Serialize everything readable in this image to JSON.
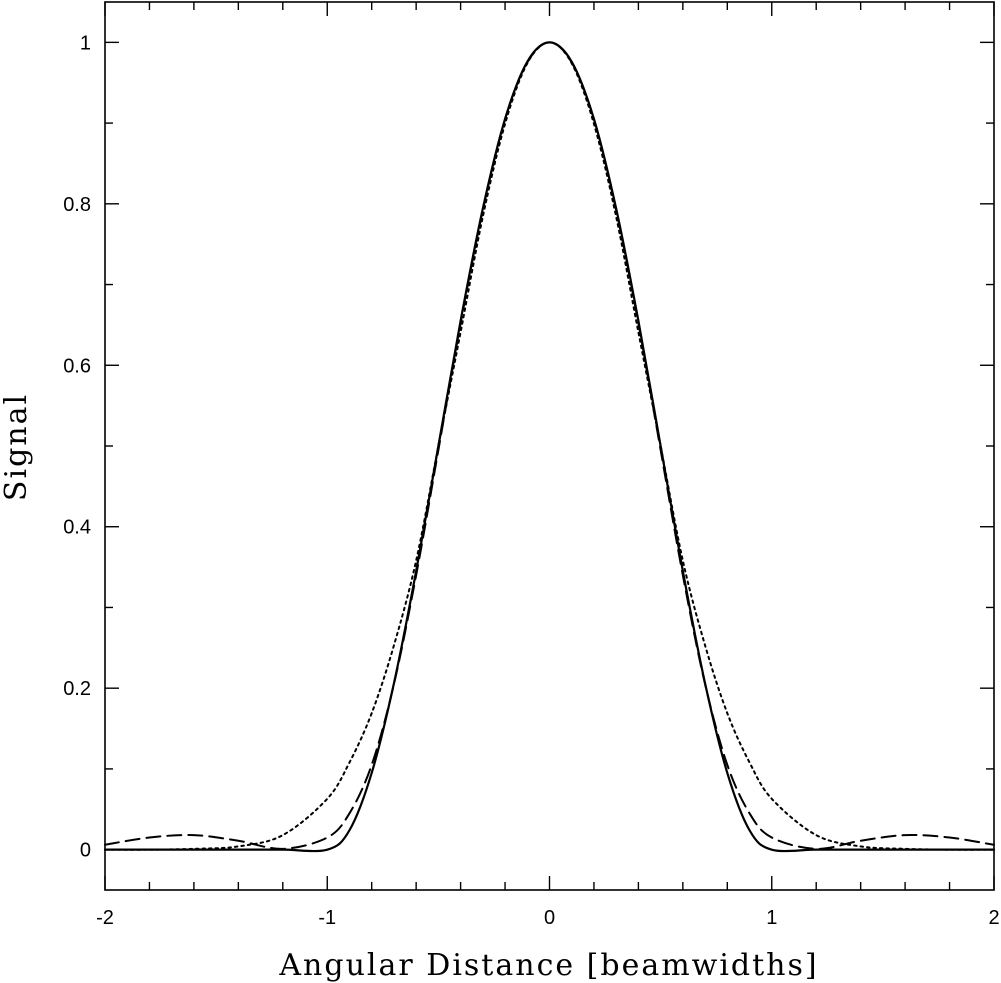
{
  "chart_data": {
    "type": "line",
    "title": "",
    "xlabel": "Angular Distance [beamwidths]",
    "ylabel": "Signal",
    "xlim": [
      -2,
      2
    ],
    "ylim": [
      -0.05,
      1.05
    ],
    "xticks": [
      -2,
      -1,
      0,
      1,
      2
    ],
    "xtick_labels": [
      "-2",
      "-1",
      "0",
      "1",
      "2"
    ],
    "yticks": [
      0,
      0.2,
      0.4,
      0.6,
      0.8,
      1
    ],
    "ytick_labels": [
      "0",
      "0.2",
      "0.4",
      "0.6",
      "0.8",
      "1"
    ],
    "grid": false,
    "legend": "none",
    "x": [
      -2.0,
      -1.8,
      -1.6,
      -1.4,
      -1.2,
      -1.0,
      -0.9,
      -0.8,
      -0.7,
      -0.6,
      -0.5,
      -0.4,
      -0.3,
      -0.2,
      -0.1,
      0.0,
      0.1,
      0.2,
      0.3,
      0.4,
      0.5,
      0.6,
      0.7,
      0.8,
      0.9,
      1.0,
      1.2,
      1.4,
      1.6,
      1.8,
      2.0
    ],
    "series": [
      {
        "style": "solid",
        "values": [
          0,
          0,
          0,
          0,
          0,
          0,
          0.024,
          0.095,
          0.206,
          0.345,
          0.5,
          0.655,
          0.794,
          0.905,
          0.976,
          1,
          0.976,
          0.905,
          0.794,
          0.655,
          0.5,
          0.345,
          0.206,
          0.095,
          0.024,
          0,
          0,
          0,
          0,
          0,
          0
        ]
      },
      {
        "style": "dashed",
        "values": [
          0.006,
          0.015,
          0.018,
          0.011,
          0.001,
          0.015,
          0.045,
          0.105,
          0.205,
          0.34,
          0.495,
          0.652,
          0.792,
          0.905,
          0.975,
          1,
          0.975,
          0.905,
          0.792,
          0.652,
          0.495,
          0.34,
          0.205,
          0.105,
          0.045,
          0.015,
          0.001,
          0.011,
          0.018,
          0.015,
          0.006
        ]
      },
      {
        "style": "dotted",
        "values": [
          0,
          0,
          0.001,
          0.004,
          0.018,
          0.063,
          0.108,
          0.169,
          0.253,
          0.358,
          0.5,
          0.641,
          0.784,
          0.899,
          0.974,
          1,
          0.974,
          0.899,
          0.784,
          0.641,
          0.5,
          0.358,
          0.253,
          0.169,
          0.108,
          0.063,
          0.018,
          0.004,
          0.001,
          0,
          0
        ]
      }
    ]
  },
  "colors": {
    "line": "#000000",
    "background": "#ffffff"
  }
}
